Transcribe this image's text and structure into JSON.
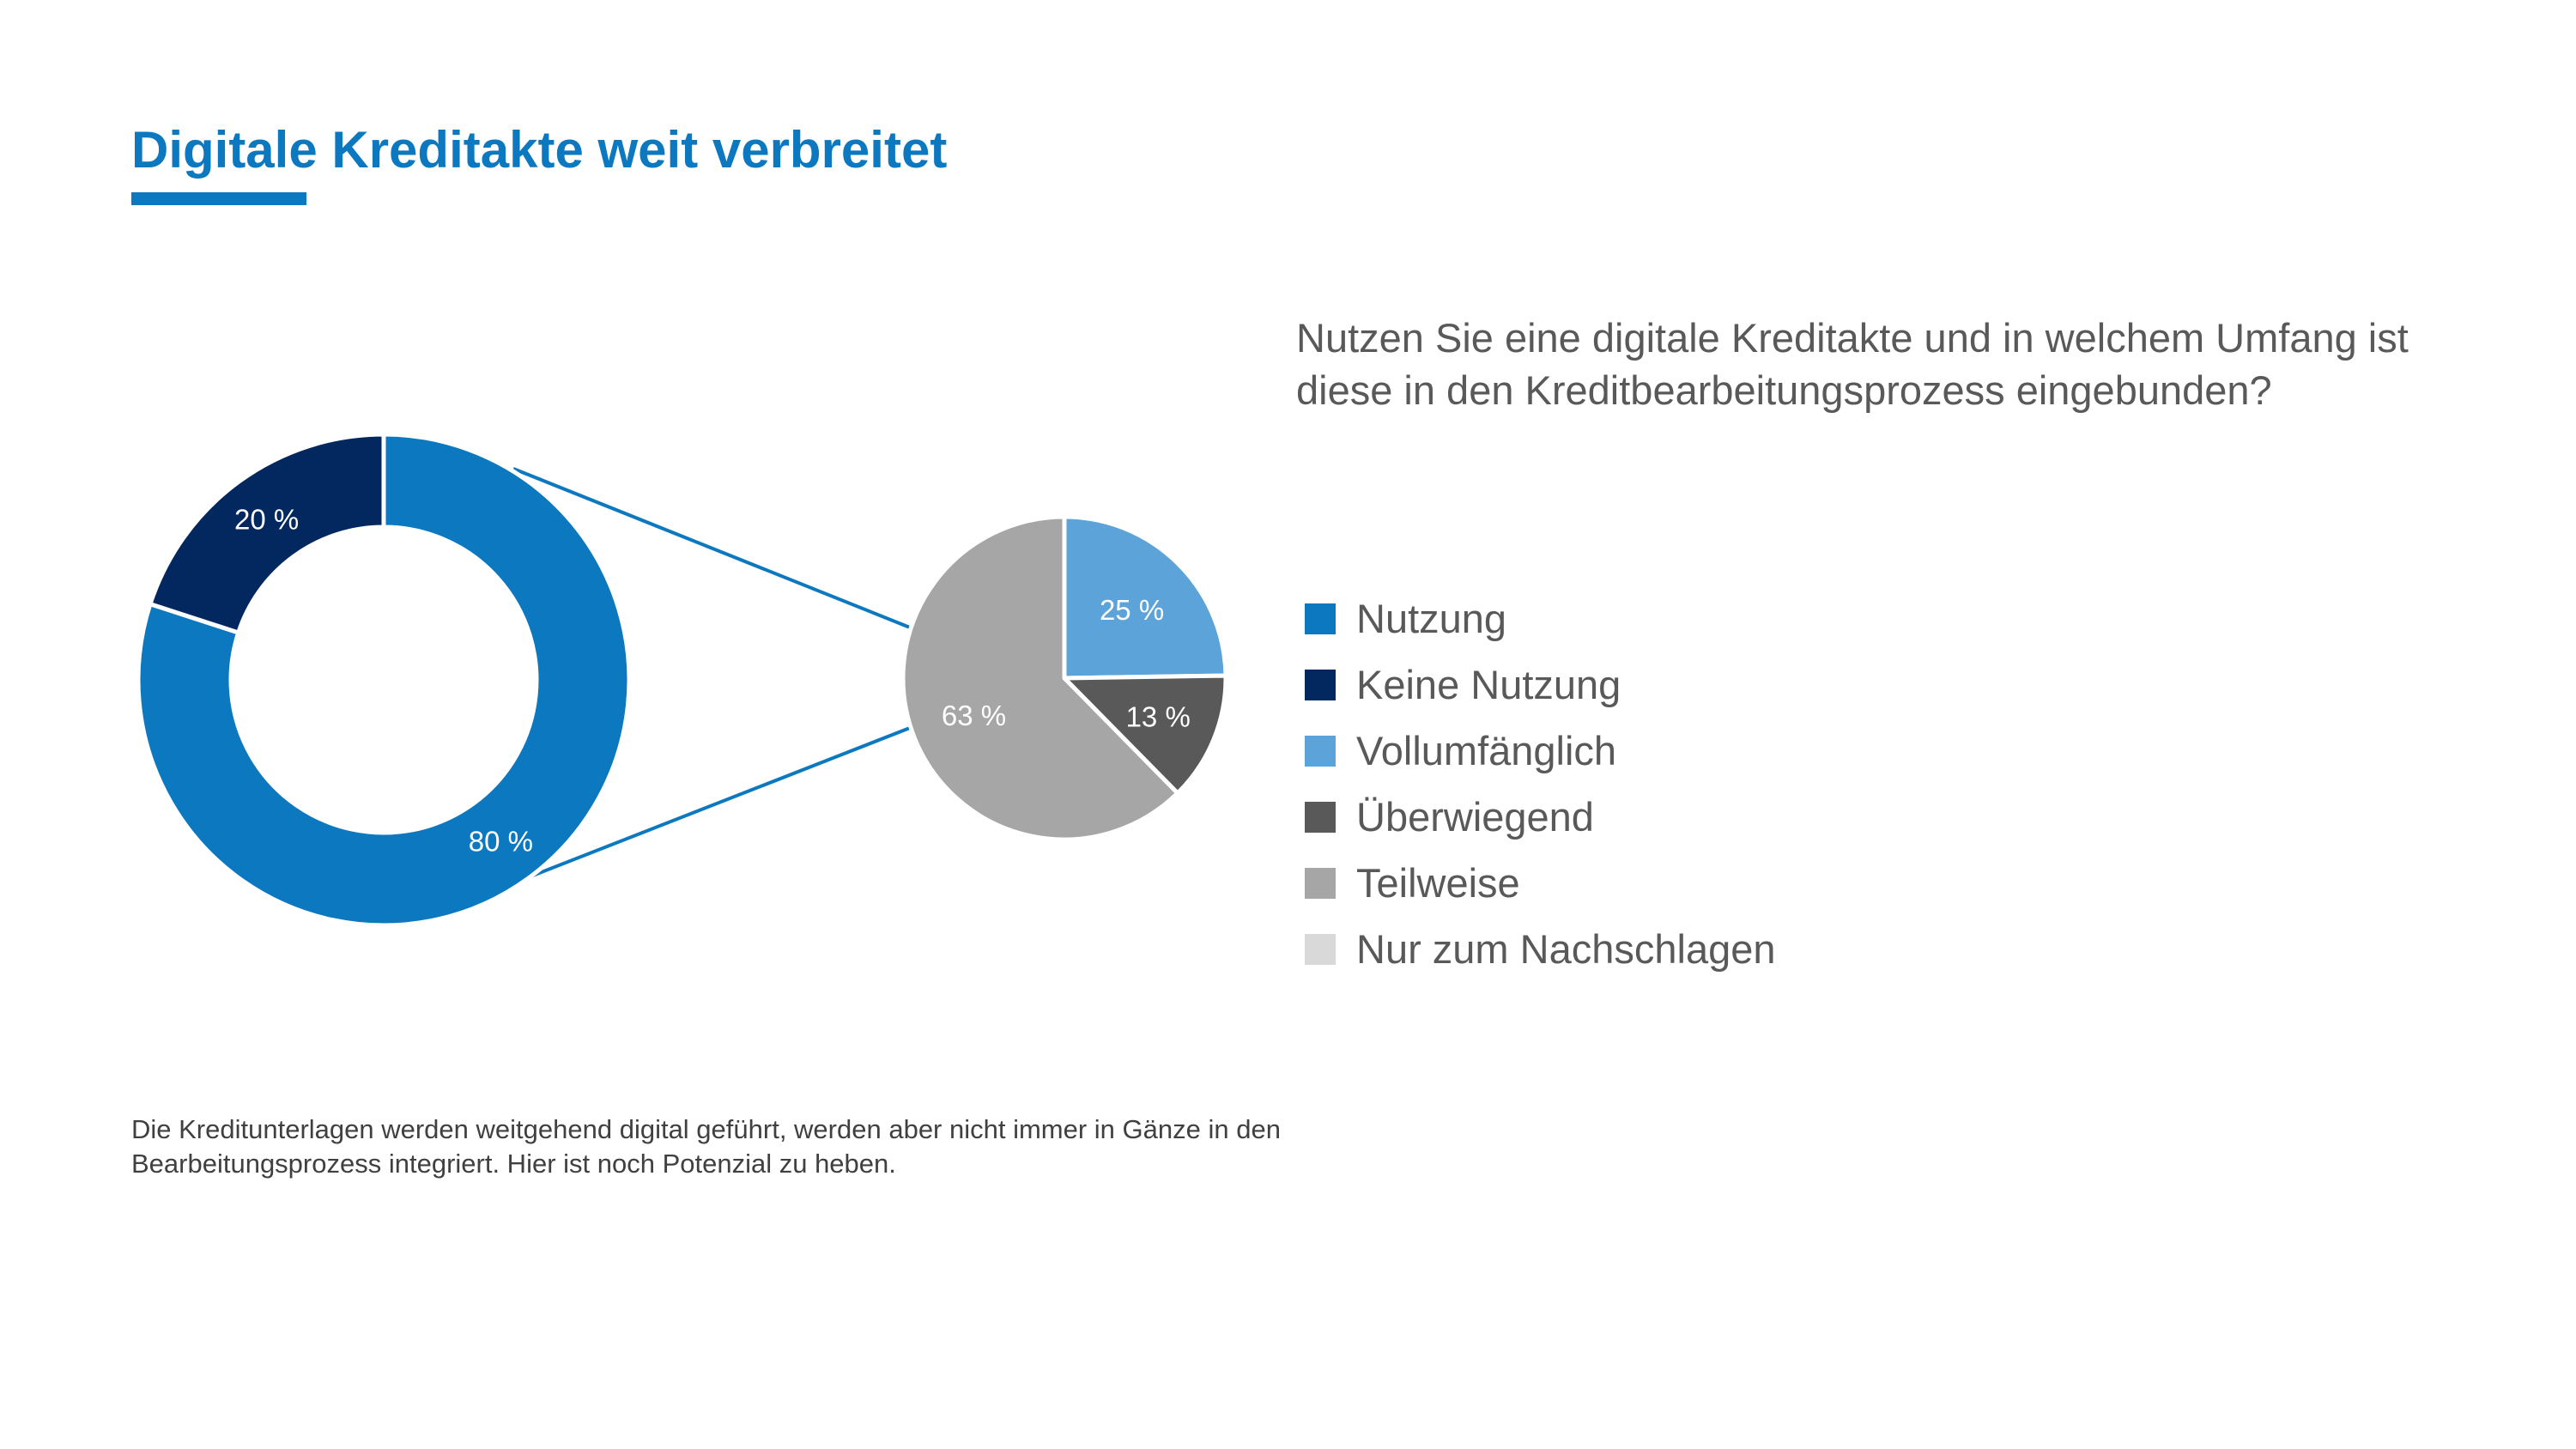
{
  "page": {
    "title": "Digitale Kreditakte weit verbreitet",
    "question": "Nutzen Sie eine digitale Kreditakte und in welchem Umfang ist diese in den Kreditbearbeitungsprozess eingebunden?",
    "footnote": "Die Kreditunterlagen werden weitgehend digital geführt, werden aber nicht immer in Gänze in den Bearbeitungsprozess integriert. Hier ist noch Potenzial zu heben.",
    "accent_color": "#0C78C0"
  },
  "legend": [
    {
      "label": "Nutzung",
      "color": "#0C78C0"
    },
    {
      "label": "Keine Nutzung",
      "color": "#03285F"
    },
    {
      "label": "Vollumfänglich",
      "color": "#5BA3D9"
    },
    {
      "label": "Überwiegend",
      "color": "#595959"
    },
    {
      "label": "Teilweise",
      "color": "#A6A6A6"
    },
    {
      "label": "Nur zum Nachschlagen",
      "color": "#D9D9D9"
    }
  ],
  "chart_data": [
    {
      "type": "pie",
      "variant": "donut",
      "title": "",
      "categories": [
        "Nutzung",
        "Keine Nutzung"
      ],
      "values": [
        80,
        20
      ],
      "labels": [
        "80 %",
        "20 %"
      ],
      "colors": [
        "#0C78C0",
        "#03285F"
      ]
    },
    {
      "type": "pie",
      "title": "",
      "breakdown_of": "Nutzung",
      "categories": [
        "Vollumfänglich",
        "Überwiegend",
        "Teilweise",
        "Nur zum Nachschlagen"
      ],
      "values": [
        25,
        13,
        63,
        0
      ],
      "labels": [
        "25 %",
        "13 %",
        "63 %",
        ""
      ],
      "colors": [
        "#5BA3D9",
        "#595959",
        "#A6A6A6",
        "#D9D9D9"
      ]
    }
  ]
}
